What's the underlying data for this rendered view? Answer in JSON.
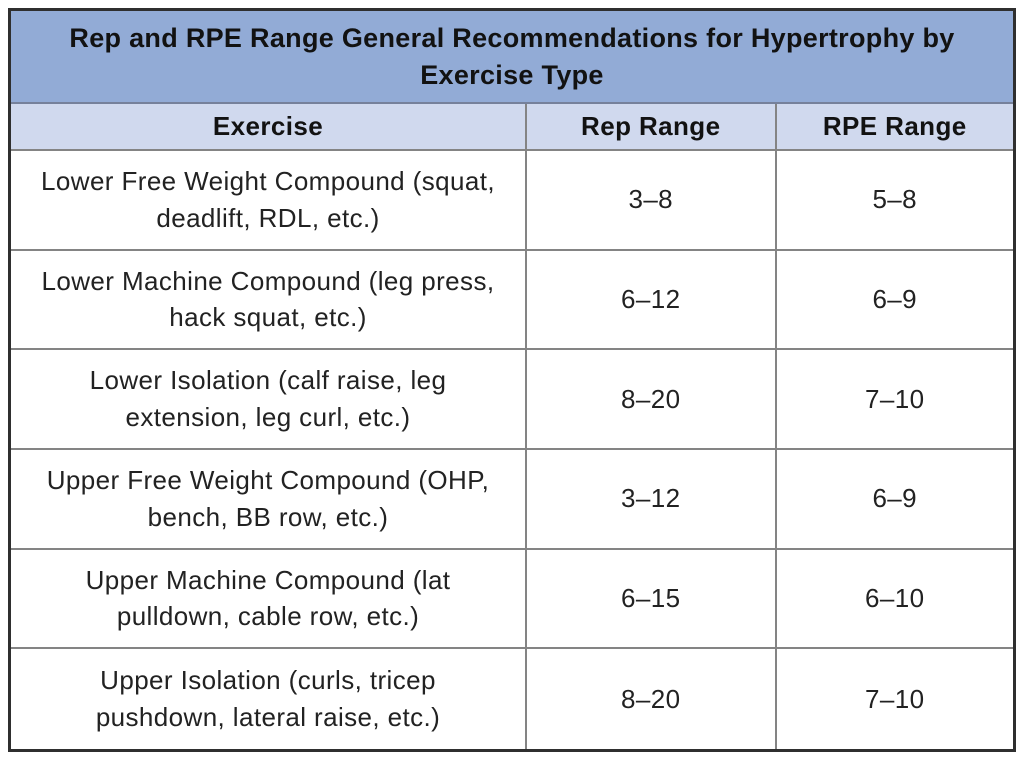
{
  "colors": {
    "title_bg": "#92abd6",
    "header_bg": "#d0d9ee",
    "title_divider": "#76819b",
    "grid_line": "#848484",
    "outer_border": "#2f2f2f",
    "text": "#1d1d1d"
  },
  "chart_data": {
    "type": "table",
    "title": "Rep and RPE Range General Recommendations for Hypertrophy by Exercise Type",
    "columns": [
      "Exercise",
      "Rep Range",
      "RPE Range"
    ],
    "rows": [
      {
        "exercise": "Lower Free Weight Compound (squat, deadlift, RDL, etc.)",
        "rep_range": "3–8",
        "rpe_range": "5–8"
      },
      {
        "exercise": "Lower Machine Compound (leg press, hack squat, etc.)",
        "rep_range": "6–12",
        "rpe_range": "6–9"
      },
      {
        "exercise": "Lower Isolation (calf raise, leg extension, leg curl, etc.)",
        "rep_range": "8–20",
        "rpe_range": "7–10"
      },
      {
        "exercise": "Upper Free Weight Compound (OHP, bench, BB row, etc.)",
        "rep_range": "3–12",
        "rpe_range": "6–9"
      },
      {
        "exercise": "Upper Machine Compound (lat pulldown, cable row, etc.)",
        "rep_range": "6–15",
        "rpe_range": "6–10"
      },
      {
        "exercise": "Upper Isolation (curls, tricep pushdown, lateral raise, etc.)",
        "rep_range": "8–20",
        "rpe_range": "7–10"
      }
    ]
  }
}
